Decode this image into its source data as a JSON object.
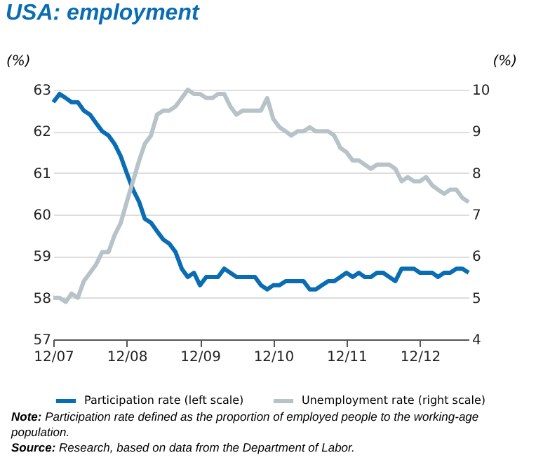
{
  "chart_data": {
    "type": "line",
    "title": "USA: employment",
    "ylabel": "(%)",
    "y2label": "(%)",
    "x": [
      "2007-12",
      "2008-01",
      "2008-02",
      "2008-03",
      "2008-04",
      "2008-05",
      "2008-06",
      "2008-07",
      "2008-08",
      "2008-09",
      "2008-10",
      "2008-11",
      "2008-12",
      "2009-01",
      "2009-02",
      "2009-03",
      "2009-04",
      "2009-05",
      "2009-06",
      "2009-07",
      "2009-08",
      "2009-09",
      "2009-10",
      "2009-11",
      "2009-12",
      "2010-01",
      "2010-02",
      "2010-03",
      "2010-04",
      "2010-05",
      "2010-06",
      "2010-07",
      "2010-08",
      "2010-09",
      "2010-10",
      "2010-11",
      "2010-12",
      "2011-01",
      "2011-02",
      "2011-03",
      "2011-04",
      "2011-05",
      "2011-06",
      "2011-07",
      "2011-08",
      "2011-09",
      "2011-10",
      "2011-11",
      "2011-12",
      "2012-01",
      "2012-02",
      "2012-03",
      "2012-04",
      "2012-05",
      "2012-06",
      "2012-07",
      "2012-08",
      "2012-09",
      "2012-10",
      "2012-11",
      "2012-12",
      "2013-01",
      "2013-02",
      "2013-03",
      "2013-04",
      "2013-05",
      "2013-06",
      "2013-07",
      "2013-08"
    ],
    "series": [
      {
        "name": "Participation rate (left scale)",
        "color": "#0a6db4",
        "values": [
          62.7,
          62.9,
          62.8,
          62.7,
          62.7,
          62.5,
          62.4,
          62.2,
          62.0,
          61.9,
          61.7,
          61.4,
          61.0,
          60.6,
          60.3,
          59.9,
          59.8,
          59.6,
          59.4,
          59.3,
          59.1,
          58.7,
          58.5,
          58.6,
          58.3,
          58.5,
          58.5,
          58.5,
          58.7,
          58.6,
          58.5,
          58.5,
          58.5,
          58.5,
          58.3,
          58.2,
          58.3,
          58.3,
          58.4,
          58.4,
          58.4,
          58.4,
          58.2,
          58.2,
          58.3,
          58.4,
          58.4,
          58.5,
          58.6,
          58.5,
          58.6,
          58.5,
          58.5,
          58.6,
          58.6,
          58.5,
          58.4,
          58.7,
          58.7,
          58.7,
          58.6,
          58.6,
          58.6,
          58.5,
          58.6,
          58.6,
          58.7,
          58.7,
          58.6
        ]
      },
      {
        "name": "Unemployment rate (right scale)",
        "color": "#b7c3c8",
        "axis": "y2",
        "values": [
          5.0,
          5.0,
          4.9,
          5.1,
          5.0,
          5.4,
          5.6,
          5.8,
          6.1,
          6.1,
          6.5,
          6.8,
          7.3,
          7.8,
          8.3,
          8.7,
          8.9,
          9.4,
          9.5,
          9.5,
          9.6,
          9.8,
          10.0,
          9.9,
          9.9,
          9.8,
          9.8,
          9.9,
          9.9,
          9.6,
          9.4,
          9.5,
          9.5,
          9.5,
          9.5,
          9.8,
          9.3,
          9.1,
          9.0,
          8.9,
          9.0,
          9.0,
          9.1,
          9.0,
          9.0,
          9.0,
          8.9,
          8.6,
          8.5,
          8.3,
          8.3,
          8.2,
          8.1,
          8.2,
          8.2,
          8.2,
          8.1,
          7.8,
          7.9,
          7.8,
          7.8,
          7.9,
          7.7,
          7.6,
          7.5,
          7.6,
          7.6,
          7.4,
          7.3
        ]
      }
    ],
    "xlim": [
      "2007-12",
      "2013-08"
    ],
    "xticks": [
      {
        "value": "2007-12",
        "label": "12/07"
      },
      {
        "value": "2008-12",
        "label": "12/08"
      },
      {
        "value": "2009-12",
        "label": "12/09"
      },
      {
        "value": "2010-12",
        "label": "12/10"
      },
      {
        "value": "2011-12",
        "label": "12/11"
      },
      {
        "value": "2012-12",
        "label": "12/12"
      }
    ],
    "ylim": [
      57,
      63
    ],
    "yticks": [
      57,
      58,
      59,
      60,
      61,
      62,
      63
    ],
    "y2lim": [
      4,
      10
    ],
    "y2ticks": [
      4,
      5,
      6,
      7,
      8,
      9,
      10
    ],
    "grid": "y",
    "legend": "bottom",
    "line_style": "solid",
    "marker": "none",
    "annotations": [
      "Note: Participation rate defined as the proportion of employed people to the working-age population.",
      "Source: Research, based on data from the Department of Labor."
    ]
  }
}
